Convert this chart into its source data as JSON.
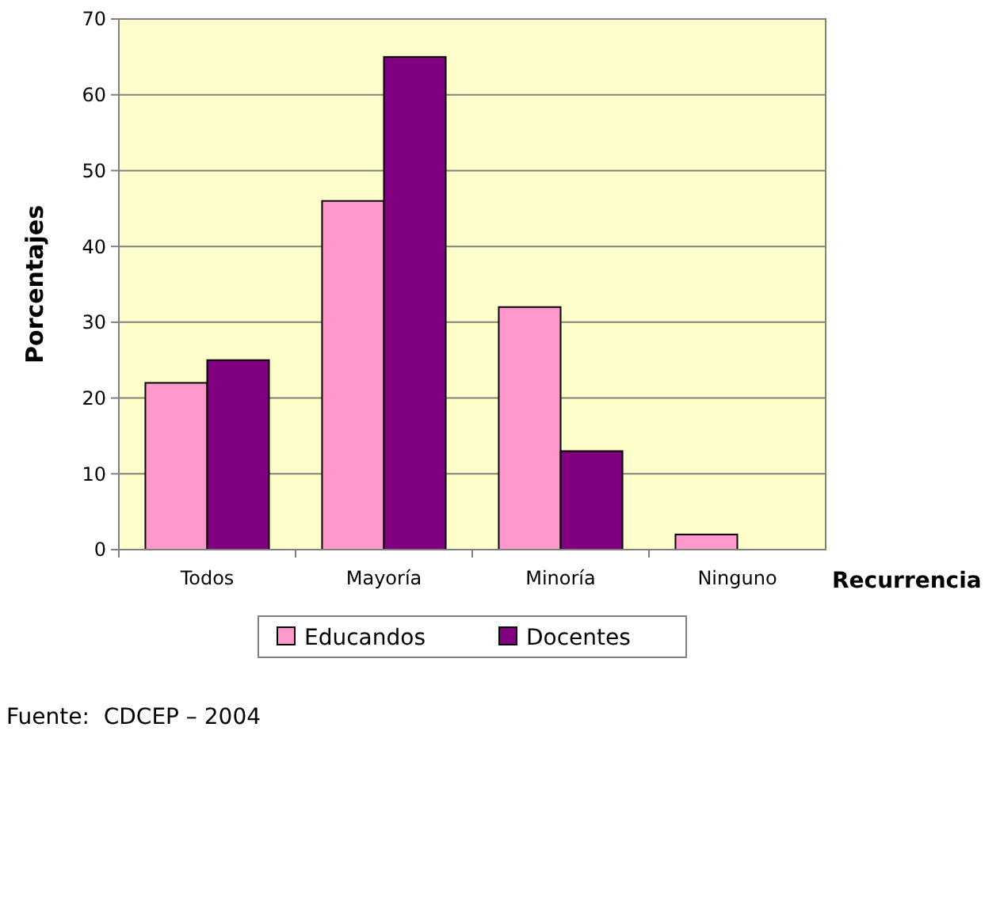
{
  "chart_data": {
    "type": "bar",
    "xlabel": "Recurrencia",
    "ylabel": "Porcentajes",
    "categories": [
      "Todos",
      "Mayoría",
      "Minoría",
      "Ninguno"
    ],
    "series": [
      {
        "name": "Educandos",
        "color": "#ff99cc",
        "values": [
          22,
          46,
          32,
          2
        ]
      },
      {
        "name": "Docentes",
        "color": "#800080",
        "values": [
          25,
          65,
          13,
          0
        ]
      }
    ],
    "ylim": [
      0,
      70
    ],
    "yticks": [
      0,
      10,
      20,
      30,
      40,
      50,
      60,
      70
    ],
    "grid": "y",
    "legend": "bottom",
    "annotations": [
      "Fuente:  CDCEP – 2004"
    ]
  }
}
